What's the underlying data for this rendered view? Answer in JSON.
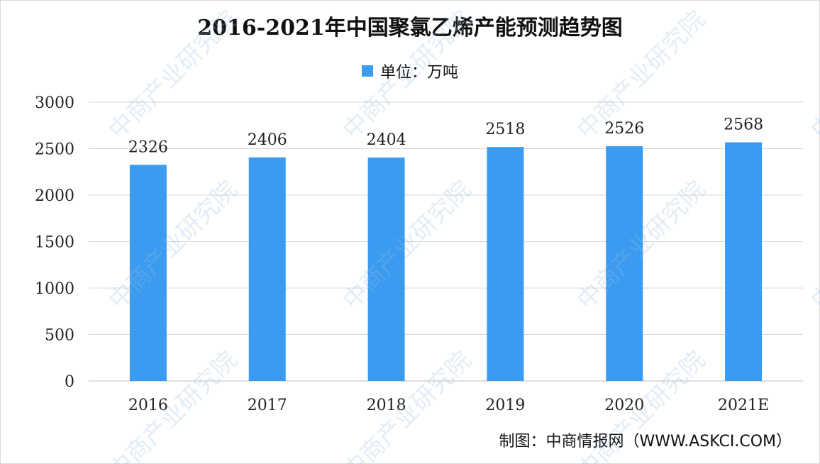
{
  "title": "2016-2021年中国聚氯乙烯产能预测趋势图",
  "legend": {
    "label": "单位：万吨"
  },
  "source": "制图：中商情报网（WWW.ASKCI.COM）",
  "watermark": "中商产业研究院",
  "colors": {
    "bar": "#3a9bf0",
    "grid": "#d9d9d9",
    "axis": "#bfbfbf"
  },
  "chart_data": {
    "type": "bar",
    "categories": [
      "2016",
      "2017",
      "2018",
      "2019",
      "2020",
      "2021E"
    ],
    "series": [
      {
        "name": "单位：万吨",
        "values": [
          2326,
          2406,
          2404,
          2518,
          2526,
          2568
        ]
      }
    ],
    "ylim": [
      0,
      3000
    ],
    "yticks": [
      0,
      500,
      1000,
      1500,
      2000,
      2500,
      3000
    ],
    "grid": true,
    "legend_position": "top-center",
    "data_labels": true
  }
}
